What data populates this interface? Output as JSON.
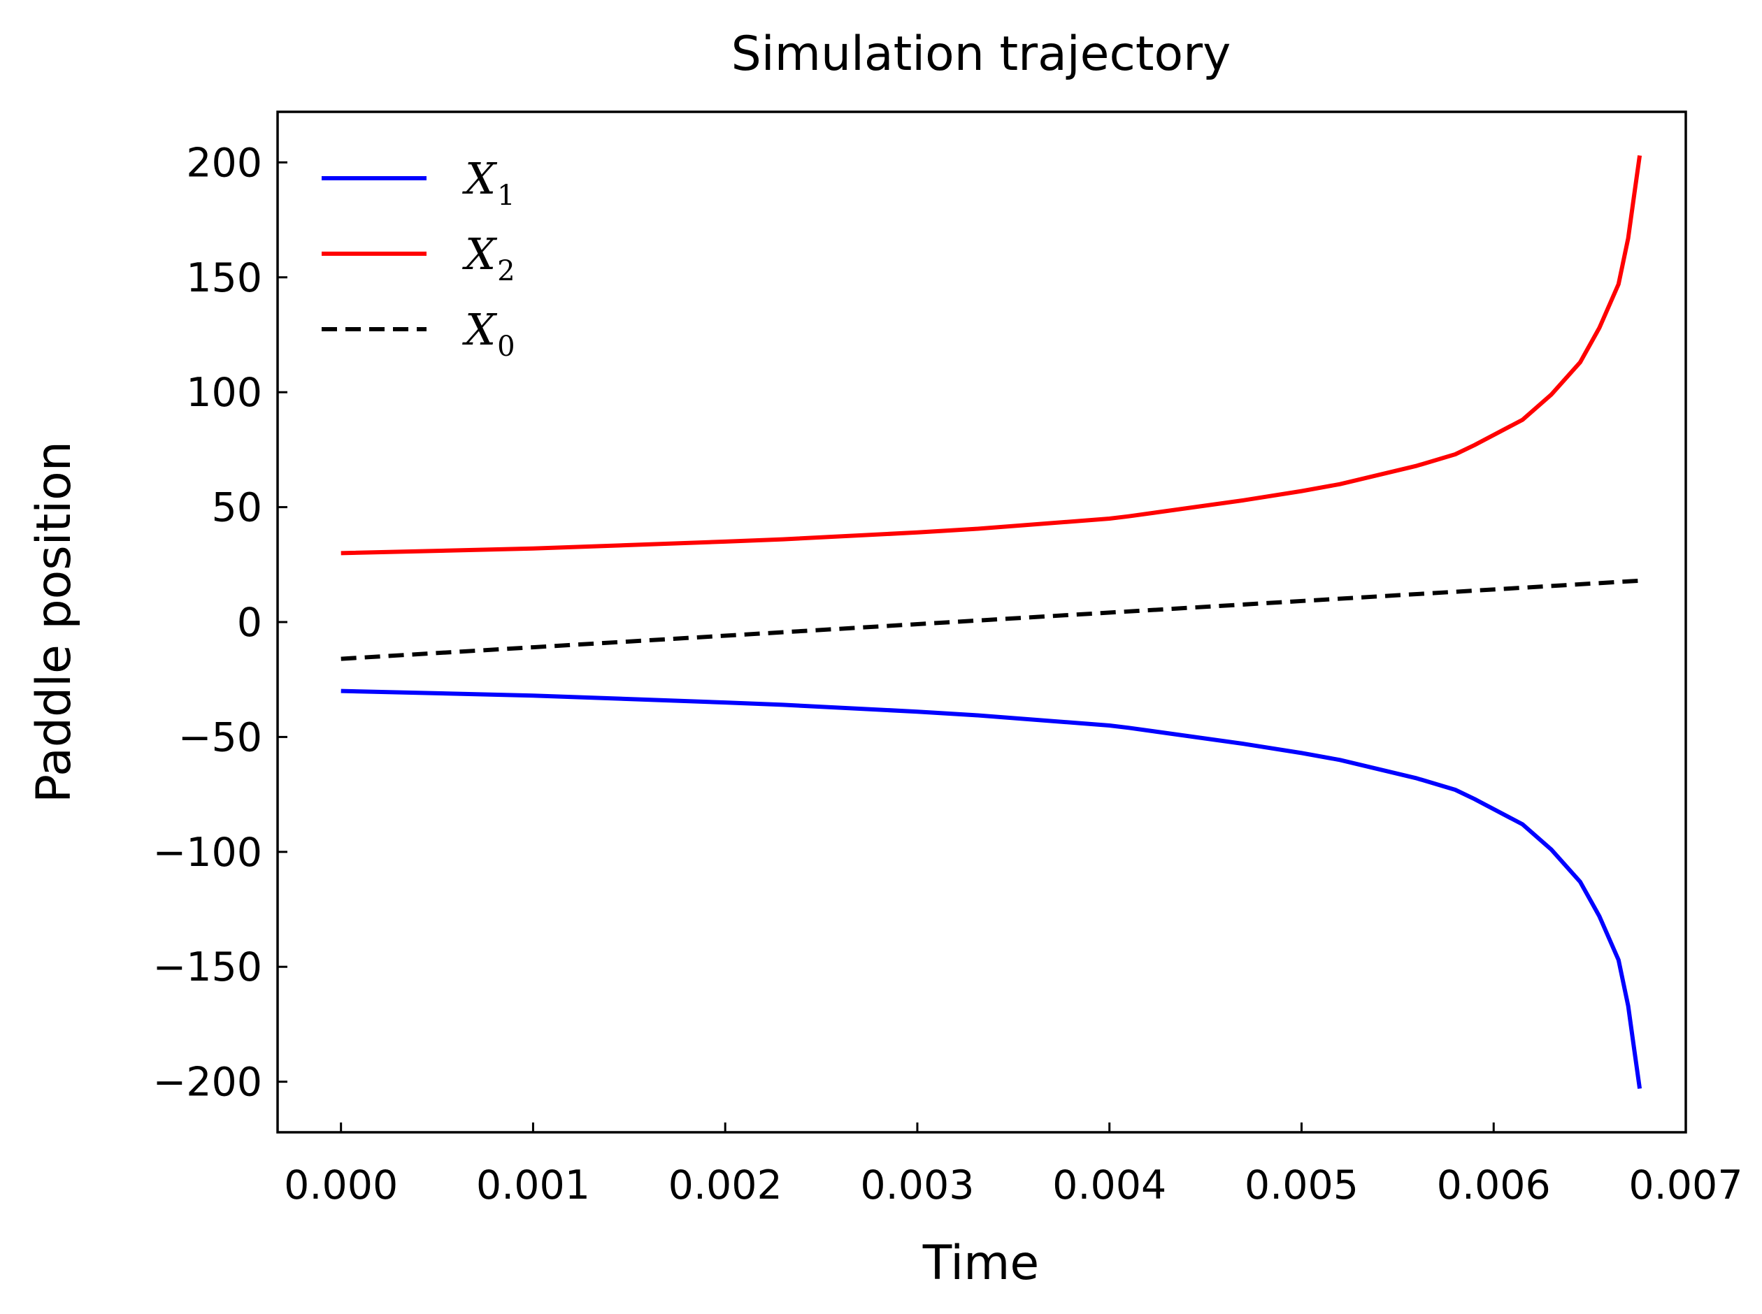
{
  "chart_data": {
    "type": "line",
    "title": "Simulation trajectory",
    "xlabel": "Time",
    "ylabel": "Paddle position",
    "xlim": [
      -0.00033,
      0.007
    ],
    "ylim": [
      -222,
      222
    ],
    "xticks": [
      "0.000",
      "0.001",
      "0.002",
      "0.003",
      "0.004",
      "0.005",
      "0.006",
      "0.007"
    ],
    "xtick_values": [
      0,
      0.001,
      0.002,
      0.003,
      0.004,
      0.005,
      0.006,
      0.007
    ],
    "yticks": [
      "−200",
      "−150",
      "−100",
      "−50",
      "0",
      "50",
      "100",
      "150",
      "200"
    ],
    "ytick_values": [
      -200,
      -150,
      -100,
      -50,
      0,
      50,
      100,
      150,
      200
    ],
    "grid": false,
    "legend_position": "top-left",
    "series": [
      {
        "name": "X",
        "name_sub": "1",
        "color": "#0000ff",
        "dash": "solid",
        "x": [
          0,
          0.001,
          0.002,
          0.0023,
          0.003,
          0.0033,
          0.004,
          0.0041,
          0.0047,
          0.005,
          0.0052,
          0.0056,
          0.0058,
          0.0059,
          0.00615,
          0.0063,
          0.00645,
          0.00655,
          0.00665,
          0.0067,
          0.00673,
          0.00676
        ],
        "y": [
          -30,
          -32,
          -35,
          -36,
          -39,
          -40.5,
          -45,
          -46,
          -53,
          -57,
          -60,
          -68,
          -73,
          -77,
          -88,
          -99,
          -113,
          -128,
          -147,
          -167,
          -185,
          -203
        ]
      },
      {
        "name": "X",
        "name_sub": "2",
        "color": "#ff0000",
        "dash": "solid",
        "x": [
          0,
          0.001,
          0.002,
          0.0023,
          0.003,
          0.0033,
          0.004,
          0.0041,
          0.0047,
          0.005,
          0.0052,
          0.0056,
          0.0058,
          0.0059,
          0.00615,
          0.0063,
          0.00645,
          0.00655,
          0.00665,
          0.0067,
          0.00673,
          0.00676
        ],
        "y": [
          30,
          32,
          35,
          36,
          39,
          40.5,
          45,
          46,
          53,
          57,
          60,
          68,
          73,
          77,
          88,
          99,
          113,
          128,
          147,
          167,
          185,
          203
        ]
      },
      {
        "name": "X",
        "name_sub": "0",
        "color": "#000000",
        "dash": "dashed",
        "x": [
          0,
          0.00676
        ],
        "y": [
          -16,
          18
        ]
      }
    ]
  }
}
